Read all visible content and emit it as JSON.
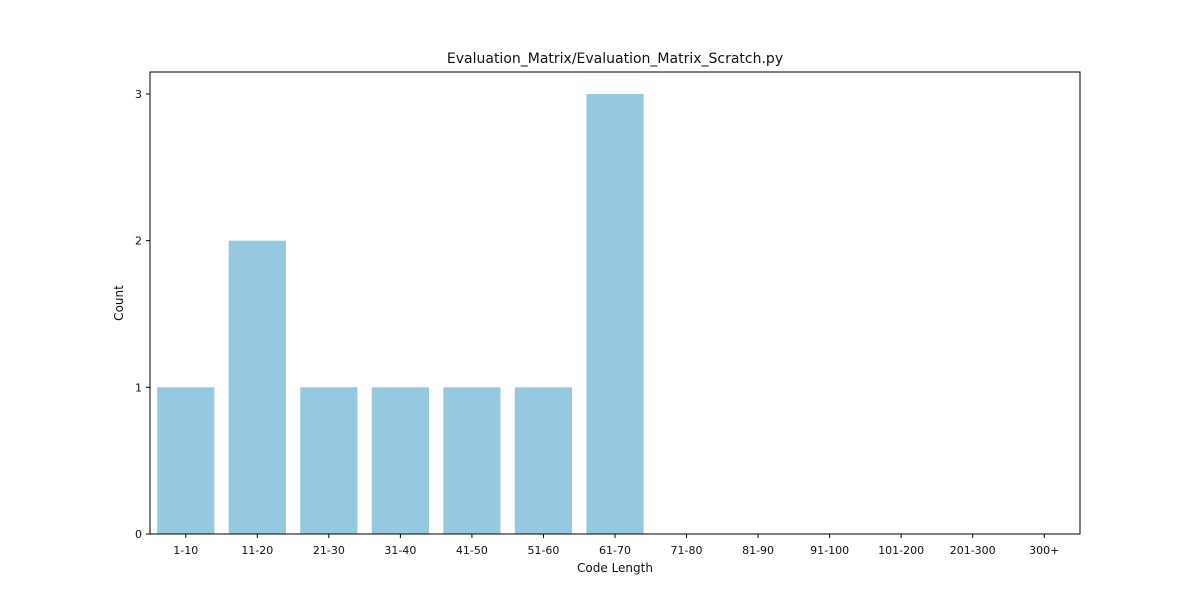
{
  "chart_data": {
    "type": "bar",
    "title": "Evaluation_Matrix/Evaluation_Matrix_Scratch.py",
    "xlabel": "Code Length",
    "ylabel": "Count",
    "categories": [
      "1-10",
      "11-20",
      "21-30",
      "31-40",
      "41-50",
      "51-60",
      "61-70",
      "71-80",
      "81-90",
      "91-100",
      "101-200",
      "201-300",
      "300+"
    ],
    "values": [
      1,
      2,
      1,
      1,
      1,
      1,
      3,
      0,
      0,
      0,
      0,
      0,
      0
    ],
    "yticks": [
      0,
      1,
      2,
      3
    ],
    "ylim": [
      0,
      3.15
    ],
    "grid": false,
    "bar_color": "#96c9df"
  }
}
